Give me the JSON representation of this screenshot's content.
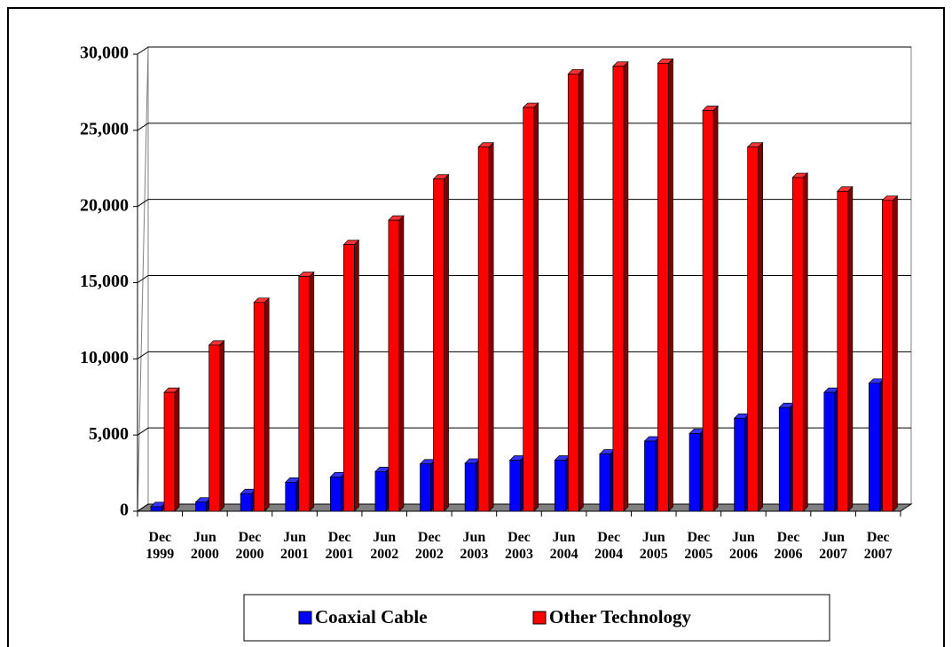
{
  "chart_data": {
    "type": "bar3d",
    "categories": [
      "Dec 1999",
      "Jun 2000",
      "Dec 2000",
      "Jun 2001",
      "Dec 2001",
      "Jun 2002",
      "Dec 2002",
      "Jun 2003",
      "Dec 2003",
      "Jun 2004",
      "Dec 2004",
      "Jun 2005",
      "Dec 2005",
      "Jun 2006",
      "Dec 2006",
      "Jun 2007",
      "Dec 2007"
    ],
    "series": [
      {
        "name": "Coaxial Cable",
        "color": "#0000ff",
        "values": [
          300,
          600,
          1150,
          1900,
          2250,
          2600,
          3100,
          3150,
          3350,
          3350,
          3750,
          4600,
          5100,
          6100,
          6800,
          7800,
          8400
        ]
      },
      {
        "name": "Other Technology",
        "color": "#ff0000",
        "values": [
          7800,
          10900,
          13700,
          15400,
          17500,
          19100,
          21800,
          23900,
          26500,
          28700,
          29200,
          29400,
          26300,
          23900,
          21900,
          21000,
          20400
        ]
      }
    ],
    "ylim": [
      0,
      30000
    ],
    "yticks": [
      0,
      {
        "value": 5000,
        "label": "5,000"
      },
      {
        "value": 10000,
        "label": "10,000"
      },
      {
        "value": 15000,
        "label": "15,000"
      },
      {
        "value": 20000,
        "label": "20,000"
      },
      {
        "value": 25000,
        "label": "25,000"
      },
      {
        "value": 30000,
        "label": "30,000"
      }
    ],
    "grid": true,
    "legend": "bottom"
  }
}
